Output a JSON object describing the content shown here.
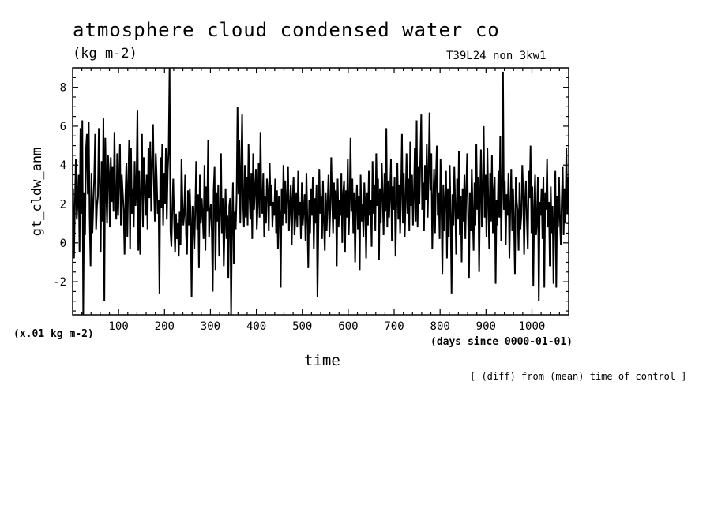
{
  "chart_data": {
    "type": "line",
    "title": "atmosphere cloud condensed water co",
    "units": "(kg m-2)",
    "run_label": "T39L24_non_3kw1",
    "scale_note": "(x.01 kg m-2)",
    "xlabel": "time",
    "x_units": "(days since 0000-01-01)",
    "ylabel": "gt_cldw_anm",
    "footnote": "[ (diff) from (mean) time of control ]",
    "xlim": [
      0,
      1080
    ],
    "ylim": [
      -3.7,
      9.0
    ],
    "x_ticks": [
      "100",
      "200",
      "300",
      "400",
      "500",
      "600",
      "700",
      "800",
      "900",
      "1000"
    ],
    "y_ticks": [
      "-2",
      "0",
      "2",
      "4",
      "6",
      "8"
    ],
    "grid": false,
    "series": [
      {
        "x_start": 1,
        "x_step": 2,
        "values": [
          2.8,
          -0.8,
          2.0,
          4.3,
          1.2,
          2.1,
          3.5,
          -0.5,
          5.9,
          1.5,
          6.3,
          -3.7,
          2.6,
          0.4,
          4.8,
          5.6,
          2.5,
          6.2,
          1.3,
          -1.2,
          3.6,
          0.5,
          2.0,
          3.4,
          5.6,
          0.7,
          1.9,
          2.4,
          5.9,
          3.0,
          -0.5,
          4.2,
          1.1,
          6.4,
          -3.0,
          5.4,
          2.7,
          1.0,
          4.5,
          3.6,
          0.8,
          4.4,
          2.1,
          3.9,
          1.6,
          5.7,
          2.0,
          1.2,
          4.6,
          1.4,
          3.3,
          5.1,
          0.9,
          3.5,
          2.6,
          1.7,
          -0.6,
          2.5,
          4.1,
          0.3,
          3.0,
          5.3,
          -0.3,
          4.9,
          1.5,
          2.8,
          0.8,
          4.2,
          1.9,
          3.1,
          6.8,
          -0.4,
          3.7,
          -0.6,
          2.7,
          5.6,
          0.8,
          4.4,
          2.9,
          1.4,
          3.5,
          0.7,
          4.9,
          2.3,
          5.2,
          1.6,
          4.1,
          6.1,
          2.9,
          1.1,
          4.6,
          3.3,
          1.5,
          2.2,
          -2.6,
          4.4,
          1.8,
          5.1,
          0.9,
          3.6,
          2.0,
          4.9,
          1.2,
          3.7,
          4.8,
          9.0,
          0.6,
          -0.2,
          1.8,
          3.3,
          1.1,
          -0.5,
          1.5,
          0.2,
          1.0,
          -0.7,
          1.6,
          -0.1,
          4.3,
          2.2,
          0.9,
          1.5,
          3.5,
          0.4,
          -0.6,
          2.7,
          0.9,
          2.8,
          1.2,
          -2.8,
          1.9,
          1.0,
          -0.3,
          1.7,
          4.2,
          0.7,
          2.5,
          -1.3,
          3.5,
          1.0,
          2.3,
          1.4,
          0.2,
          4.0,
          -0.4,
          2.9,
          1.6,
          5.3,
          0.3,
          1.6,
          2.0,
          0.6,
          -2.5,
          2.7,
          3.9,
          -1.4,
          2.6,
          1.1,
          3.0,
          -0.7,
          1.5,
          4.6,
          0.5,
          2.3,
          -1.2,
          0.9,
          2.8,
          0.2,
          1.4,
          -1.8,
          1.9,
          2.3,
          -3.7,
          1.0,
          3.1,
          -1.1,
          1.6,
          0.7,
          2.4,
          7.0,
          2.5,
          5.3,
          1.0,
          3.7,
          6.6,
          2.1,
          0.8,
          4.0,
          1.3,
          3.4,
          0.9,
          5.1,
          2.4,
          1.2,
          3.6,
          0.2,
          4.6,
          1.7,
          2.8,
          3.8,
          0.7,
          2.0,
          4.1,
          1.3,
          5.7,
          2.1,
          1.5,
          3.6,
          0.3,
          2.4,
          1.0,
          3.3,
          2.7,
          0.6,
          4.1,
          1.9,
          3.0,
          0.8,
          2.1,
          1.4,
          3.3,
          0.5,
          2.7,
          -0.3,
          2.4,
          1.6,
          -2.3,
          2.8,
          0.9,
          4.0,
          1.5,
          3.2,
          1.0,
          2.4,
          3.9,
          0.6,
          1.8,
          3.0,
          -0.1,
          2.3,
          3.4,
          0.4,
          1.3,
          2.6,
          0.8,
          3.7,
          1.4,
          2.1,
          0.2,
          3.1,
          0.9,
          1.7,
          2.5,
          0.1,
          3.6,
          1.2,
          -1.3,
          2.2,
          0.5,
          2.8,
          1.4,
          3.4,
          -0.3,
          2.3,
          1.0,
          3.0,
          -2.8,
          0.7,
          3.8,
          1.5,
          2.4,
          0.2,
          3.2,
          1.1,
          -0.4,
          2.6,
          0.6,
          2.0,
          3.5,
          0.3,
          1.8,
          4.4,
          2.2,
          0.5,
          3.1,
          1.2,
          2.7,
          -1.2,
          3.3,
          0.8,
          2.2,
          1.4,
          3.6,
          0.0,
          2.5,
          3.2,
          -0.5,
          2.7,
          1.3,
          4.3,
          0.4,
          2.0,
          5.4,
          1.6,
          3.3,
          0.5,
          2.6,
          -1.0,
          1.9,
          3.0,
          0.7,
          2.4,
          -1.4,
          3.5,
          1.1,
          2.0,
          0.3,
          3.1,
          1.8,
          -0.8,
          2.6,
          0.9,
          3.7,
          1.4,
          2.2,
          -0.2,
          4.2,
          1.5,
          3.0,
          0.6,
          4.6,
          1.9,
          3.3,
          -0.9,
          2.8,
          1.0,
          4.1,
          2.4,
          0.4,
          3.6,
          1.6,
          5.9,
          0.8,
          3.2,
          1.3,
          2.5,
          4.3,
          0.1,
          2.9,
          1.7,
          3.4,
          -0.7,
          2.0,
          4.1,
          1.2,
          3.0,
          0.5,
          2.6,
          5.6,
          1.0,
          3.6,
          0.3,
          2.2,
          4.6,
          1.5,
          3.3,
          0.6,
          5.2,
          1.9,
          3.5,
          0.9,
          2.4,
          4.9,
          1.1,
          6.3,
          0.8,
          3.9,
          2.0,
          4.4,
          6.6,
          1.7,
          3.1,
          0.6,
          4.0,
          2.2,
          5.1,
          1.3,
          3.5,
          6.7,
          2.7,
          4.6,
          -0.3,
          2.1,
          3.8,
          0.5,
          3.3,
          5.0,
          1.4,
          2.6,
          0.2,
          4.3,
          1.8,
          -1.6,
          3.0,
          0.6,
          2.3,
          3.7,
          -0.8,
          2.8,
          0.3,
          4.0,
          1.5,
          -2.6,
          2.5,
          0.9,
          3.9,
          1.9,
          -0.6,
          3.3,
          1.2,
          4.7,
          0.4,
          2.4,
          -1.0,
          2.8,
          1.1,
          3.5,
          0.2,
          2.7,
          4.6,
          1.4,
          -1.8,
          2.6,
          0.6,
          3.8,
          1.5,
          -0.4,
          3.1,
          0.9,
          5.1,
          1.7,
          3.4,
          -1.5,
          2.3,
          4.8,
          0.8,
          2.6,
          6.0,
          1.3,
          3.5,
          0.3,
          4.9,
          2.1,
          -0.3,
          3.6,
          1.1,
          4.5,
          0.5,
          2.6,
          3.4,
          -2.1,
          2.2,
          0.9,
          3.7,
          1.3,
          5.5,
          0.1,
          2.4,
          8.8,
          1.7,
          3.2,
          -0.1,
          2.5,
          1.4,
          3.6,
          -0.8,
          1.9,
          3.8,
          0.6,
          2.8,
          1.0,
          -1.6,
          3.4,
          2.1,
          1.6,
          -0.4,
          3.1,
          0.7,
          1.4,
          4.0,
          2.6,
          -0.6,
          2.1,
          3.2,
          1.2,
          -0.3,
          3.7,
          2.3,
          5.0,
          0.5,
          2.9,
          -2.2,
          1.8,
          3.5,
          0.4,
          1.1,
          3.4,
          -3.0,
          2.1,
          1.4,
          2.8,
          0.2,
          3.4,
          -2.3,
          2.6,
          1.7,
          4.3,
          0.8,
          2.1,
          -1.2,
          2.9,
          0.5,
          1.9,
          -2.1,
          1.6,
          3.7,
          -2.3,
          2.4,
          0.8,
          3.4,
          1.2,
          -0.1,
          2.2,
          3.9,
          0.4,
          2.8,
          1.0,
          4.9,
          1.5,
          3.4,
          -0.9,
          2.0,
          3.6,
          0.5,
          2.6,
          1.4,
          5.4,
          0.6,
          2.3,
          4.0,
          1.9,
          3.0,
          2.1,
          4.0
        ]
      }
    ]
  }
}
